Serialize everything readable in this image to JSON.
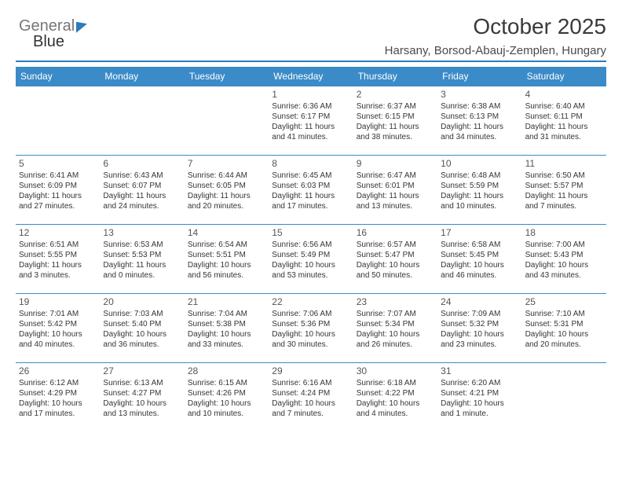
{
  "brand": {
    "part1": "General",
    "part2": "Blue"
  },
  "title": "October 2025",
  "location": "Harsany, Borsod-Abauj-Zemplen, Hungary",
  "colors": {
    "accent": "#3b8bc8",
    "rule": "#2b7bbd",
    "text": "#333333"
  },
  "weekdays": [
    "Sunday",
    "Monday",
    "Tuesday",
    "Wednesday",
    "Thursday",
    "Friday",
    "Saturday"
  ],
  "grid": {
    "cols": 7,
    "rows": 5,
    "first_day_col": 3
  },
  "days": [
    {
      "n": "1",
      "sunrise": "Sunrise: 6:36 AM",
      "sunset": "Sunset: 6:17 PM",
      "day1": "Daylight: 11 hours",
      "day2": "and 41 minutes."
    },
    {
      "n": "2",
      "sunrise": "Sunrise: 6:37 AM",
      "sunset": "Sunset: 6:15 PM",
      "day1": "Daylight: 11 hours",
      "day2": "and 38 minutes."
    },
    {
      "n": "3",
      "sunrise": "Sunrise: 6:38 AM",
      "sunset": "Sunset: 6:13 PM",
      "day1": "Daylight: 11 hours",
      "day2": "and 34 minutes."
    },
    {
      "n": "4",
      "sunrise": "Sunrise: 6:40 AM",
      "sunset": "Sunset: 6:11 PM",
      "day1": "Daylight: 11 hours",
      "day2": "and 31 minutes."
    },
    {
      "n": "5",
      "sunrise": "Sunrise: 6:41 AM",
      "sunset": "Sunset: 6:09 PM",
      "day1": "Daylight: 11 hours",
      "day2": "and 27 minutes."
    },
    {
      "n": "6",
      "sunrise": "Sunrise: 6:43 AM",
      "sunset": "Sunset: 6:07 PM",
      "day1": "Daylight: 11 hours",
      "day2": "and 24 minutes."
    },
    {
      "n": "7",
      "sunrise": "Sunrise: 6:44 AM",
      "sunset": "Sunset: 6:05 PM",
      "day1": "Daylight: 11 hours",
      "day2": "and 20 minutes."
    },
    {
      "n": "8",
      "sunrise": "Sunrise: 6:45 AM",
      "sunset": "Sunset: 6:03 PM",
      "day1": "Daylight: 11 hours",
      "day2": "and 17 minutes."
    },
    {
      "n": "9",
      "sunrise": "Sunrise: 6:47 AM",
      "sunset": "Sunset: 6:01 PM",
      "day1": "Daylight: 11 hours",
      "day2": "and 13 minutes."
    },
    {
      "n": "10",
      "sunrise": "Sunrise: 6:48 AM",
      "sunset": "Sunset: 5:59 PM",
      "day1": "Daylight: 11 hours",
      "day2": "and 10 minutes."
    },
    {
      "n": "11",
      "sunrise": "Sunrise: 6:50 AM",
      "sunset": "Sunset: 5:57 PM",
      "day1": "Daylight: 11 hours",
      "day2": "and 7 minutes."
    },
    {
      "n": "12",
      "sunrise": "Sunrise: 6:51 AM",
      "sunset": "Sunset: 5:55 PM",
      "day1": "Daylight: 11 hours",
      "day2": "and 3 minutes."
    },
    {
      "n": "13",
      "sunrise": "Sunrise: 6:53 AM",
      "sunset": "Sunset: 5:53 PM",
      "day1": "Daylight: 11 hours",
      "day2": "and 0 minutes."
    },
    {
      "n": "14",
      "sunrise": "Sunrise: 6:54 AM",
      "sunset": "Sunset: 5:51 PM",
      "day1": "Daylight: 10 hours",
      "day2": "and 56 minutes."
    },
    {
      "n": "15",
      "sunrise": "Sunrise: 6:56 AM",
      "sunset": "Sunset: 5:49 PM",
      "day1": "Daylight: 10 hours",
      "day2": "and 53 minutes."
    },
    {
      "n": "16",
      "sunrise": "Sunrise: 6:57 AM",
      "sunset": "Sunset: 5:47 PM",
      "day1": "Daylight: 10 hours",
      "day2": "and 50 minutes."
    },
    {
      "n": "17",
      "sunrise": "Sunrise: 6:58 AM",
      "sunset": "Sunset: 5:45 PM",
      "day1": "Daylight: 10 hours",
      "day2": "and 46 minutes."
    },
    {
      "n": "18",
      "sunrise": "Sunrise: 7:00 AM",
      "sunset": "Sunset: 5:43 PM",
      "day1": "Daylight: 10 hours",
      "day2": "and 43 minutes."
    },
    {
      "n": "19",
      "sunrise": "Sunrise: 7:01 AM",
      "sunset": "Sunset: 5:42 PM",
      "day1": "Daylight: 10 hours",
      "day2": "and 40 minutes."
    },
    {
      "n": "20",
      "sunrise": "Sunrise: 7:03 AM",
      "sunset": "Sunset: 5:40 PM",
      "day1": "Daylight: 10 hours",
      "day2": "and 36 minutes."
    },
    {
      "n": "21",
      "sunrise": "Sunrise: 7:04 AM",
      "sunset": "Sunset: 5:38 PM",
      "day1": "Daylight: 10 hours",
      "day2": "and 33 minutes."
    },
    {
      "n": "22",
      "sunrise": "Sunrise: 7:06 AM",
      "sunset": "Sunset: 5:36 PM",
      "day1": "Daylight: 10 hours",
      "day2": "and 30 minutes."
    },
    {
      "n": "23",
      "sunrise": "Sunrise: 7:07 AM",
      "sunset": "Sunset: 5:34 PM",
      "day1": "Daylight: 10 hours",
      "day2": "and 26 minutes."
    },
    {
      "n": "24",
      "sunrise": "Sunrise: 7:09 AM",
      "sunset": "Sunset: 5:32 PM",
      "day1": "Daylight: 10 hours",
      "day2": "and 23 minutes."
    },
    {
      "n": "25",
      "sunrise": "Sunrise: 7:10 AM",
      "sunset": "Sunset: 5:31 PM",
      "day1": "Daylight: 10 hours",
      "day2": "and 20 minutes."
    },
    {
      "n": "26",
      "sunrise": "Sunrise: 6:12 AM",
      "sunset": "Sunset: 4:29 PM",
      "day1": "Daylight: 10 hours",
      "day2": "and 17 minutes."
    },
    {
      "n": "27",
      "sunrise": "Sunrise: 6:13 AM",
      "sunset": "Sunset: 4:27 PM",
      "day1": "Daylight: 10 hours",
      "day2": "and 13 minutes."
    },
    {
      "n": "28",
      "sunrise": "Sunrise: 6:15 AM",
      "sunset": "Sunset: 4:26 PM",
      "day1": "Daylight: 10 hours",
      "day2": "and 10 minutes."
    },
    {
      "n": "29",
      "sunrise": "Sunrise: 6:16 AM",
      "sunset": "Sunset: 4:24 PM",
      "day1": "Daylight: 10 hours",
      "day2": "and 7 minutes."
    },
    {
      "n": "30",
      "sunrise": "Sunrise: 6:18 AM",
      "sunset": "Sunset: 4:22 PM",
      "day1": "Daylight: 10 hours",
      "day2": "and 4 minutes."
    },
    {
      "n": "31",
      "sunrise": "Sunrise: 6:20 AM",
      "sunset": "Sunset: 4:21 PM",
      "day1": "Daylight: 10 hours",
      "day2": "and 1 minute."
    }
  ]
}
